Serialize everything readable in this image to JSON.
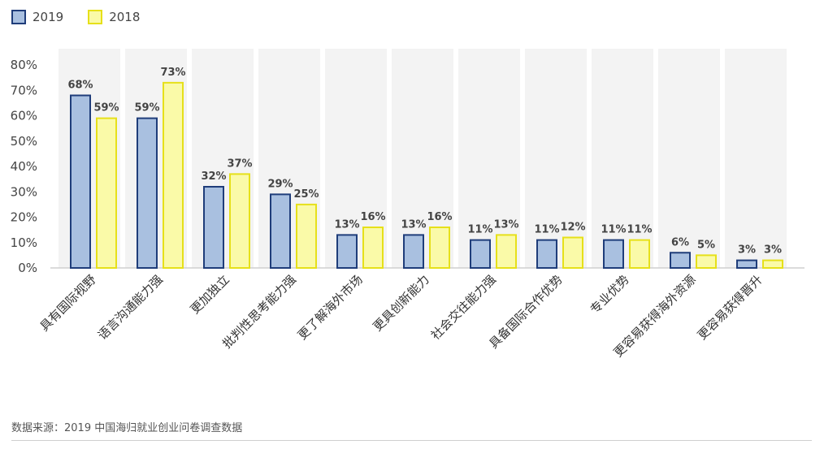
{
  "legend": [
    {
      "name": "2019",
      "fill": "#a9c0e0",
      "stroke": "#1f3d7a"
    },
    {
      "name": "2018",
      "fill": "#fafaa8",
      "stroke": "#e6e01a"
    }
  ],
  "source": "数据来源：2019 中国海归就业创业问卷调查数据",
  "chart_data": {
    "type": "bar",
    "categories": [
      "具有国际视野",
      "语言沟通能力强",
      "更加独立",
      "批判性思考能力强",
      "更了解海外市场",
      "更具创新能力",
      "社会交往能力强",
      "具备国际合作优势",
      "专业优势",
      "更容易获得海外资源",
      "更容易获得晋升"
    ],
    "series": [
      {
        "name": "2019",
        "values": [
          68,
          59,
          32,
          29,
          13,
          13,
          11,
          11,
          11,
          6,
          3
        ],
        "labels": [
          "68%",
          "59%",
          "32%",
          "29%",
          "13%",
          "13%",
          "11%",
          "11%",
          "11%",
          "6%",
          "3%"
        ]
      },
      {
        "name": "2018",
        "values": [
          59,
          73,
          37,
          25,
          16,
          16,
          13,
          12,
          11,
          5,
          3
        ],
        "labels": [
          "59%",
          "73%",
          "37%",
          "25%",
          "16%",
          "16%",
          "13%",
          "12%",
          "11%",
          "5%",
          "3%"
        ]
      }
    ],
    "ylim": [
      0,
      80
    ],
    "yticks": [
      "0%",
      "10%",
      "20%",
      "30%",
      "40%",
      "50%",
      "60%",
      "70%",
      "80%"
    ],
    "legend_position": "top-left",
    "colors": {
      "fill2019": "#a9c0e0",
      "stroke2019": "#1f3d7a",
      "fill2018": "#fafaa8",
      "stroke2018": "#e6e01a",
      "band": "#f3f3f3"
    }
  }
}
